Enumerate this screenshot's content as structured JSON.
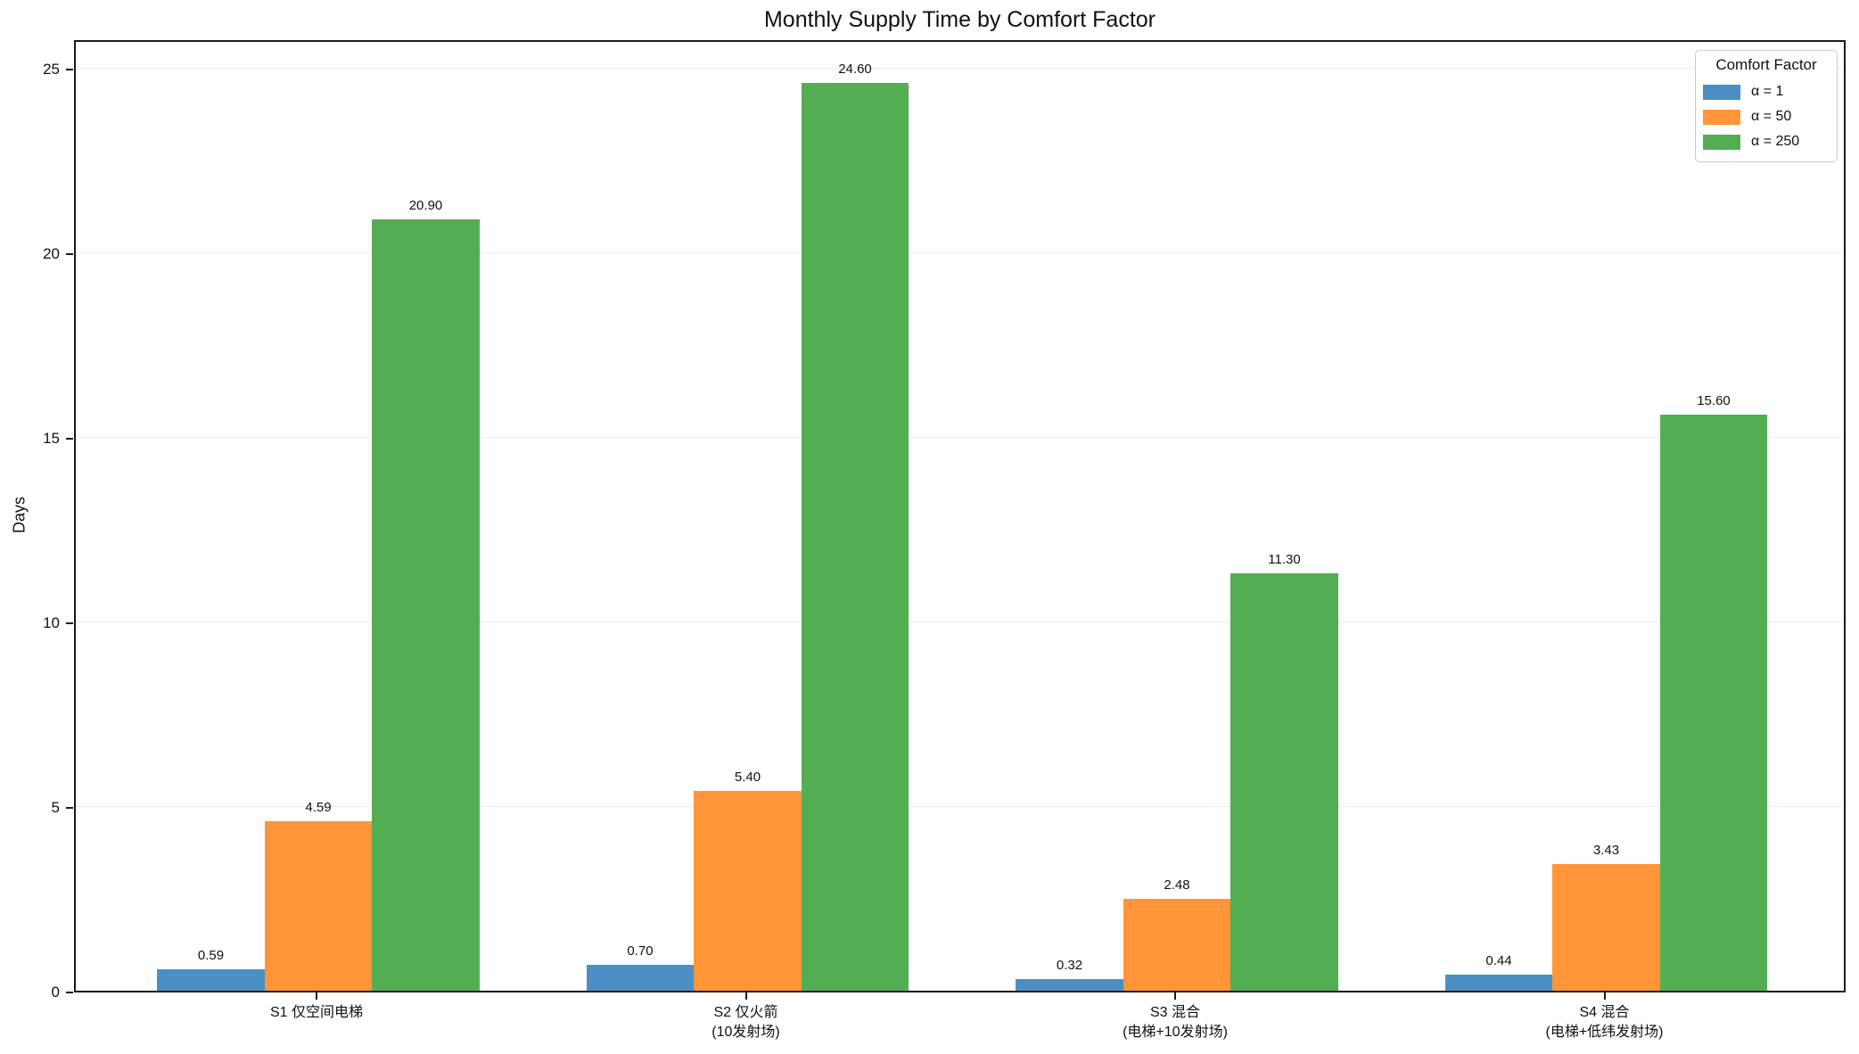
{
  "title": "Monthly Supply Time by Comfort Factor",
  "ylabel": "Days",
  "legend": {
    "title": "Comfort Factor",
    "entries": [
      {
        "label": "α = 1",
        "color": "#4a90c5"
      },
      {
        "label": "α = 50",
        "color": "#ff9538"
      },
      {
        "label": "α = 250",
        "color": "#53ae53"
      }
    ]
  },
  "chart_data": {
    "type": "bar",
    "title": "Monthly Supply Time by Comfort Factor",
    "xlabel": "",
    "ylabel": "Days",
    "categories": [
      [
        "S1 仅空间电梯"
      ],
      [
        "S2 仅火箭",
        "(10发射场)"
      ],
      [
        "S3 混合",
        "(电梯+10发射场)"
      ],
      [
        "S4 混合",
        "(电梯+低纬发射场)"
      ]
    ],
    "series": [
      {
        "name": "α = 1",
        "color": "#4a90c5",
        "values": [
          0.59,
          0.7,
          0.32,
          0.44
        ]
      },
      {
        "name": "α = 50",
        "color": "#ff9538",
        "values": [
          4.59,
          5.4,
          2.48,
          3.43
        ]
      },
      {
        "name": "α = 250",
        "color": "#53ae53",
        "values": [
          20.9,
          24.6,
          11.3,
          15.6
        ]
      }
    ],
    "value_label_decimals": 2,
    "yticks": [
      0,
      5,
      10,
      15,
      20,
      25
    ],
    "ylim": [
      0,
      25.8
    ],
    "grid": true,
    "grid_color": "#ebebeb",
    "legend_position": "upper right"
  }
}
